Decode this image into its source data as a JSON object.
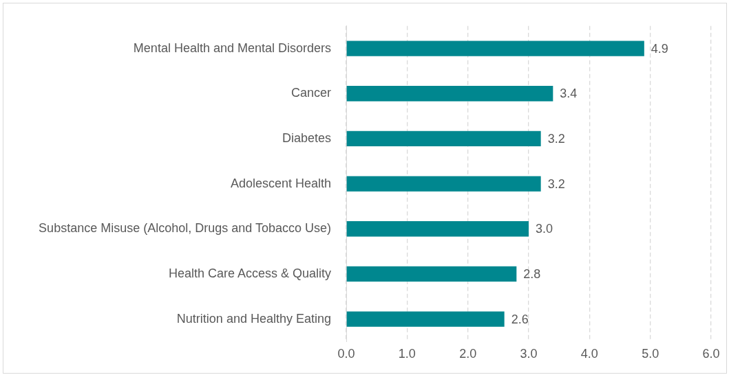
{
  "chart_data": {
    "type": "bar",
    "orientation": "horizontal",
    "categories": [
      "Mental Health and Mental Disorders",
      "Cancer",
      "Diabetes",
      "Adolescent Health",
      "Substance Misuse (Alcohol, Drugs and Tobacco Use)",
      "Health Care Access & Quality",
      "Nutrition and Healthy Eating"
    ],
    "values": [
      4.9,
      3.4,
      3.2,
      3.2,
      3.0,
      2.8,
      2.6
    ],
    "value_labels": [
      "4.9",
      "3.4",
      "3.2",
      "3.2",
      "3.0",
      "2.8",
      "2.6"
    ],
    "color": "#00878f",
    "xlim": [
      0,
      6
    ],
    "xticks": [
      {
        "value": 0,
        "label": "0.0"
      },
      {
        "value": 1,
        "label": "1.0"
      },
      {
        "value": 2,
        "label": "2.0"
      },
      {
        "value": 3,
        "label": "3.0"
      },
      {
        "value": 4,
        "label": "4.0"
      },
      {
        "value": 5,
        "label": "5.0"
      },
      {
        "value": 6,
        "label": "6.0"
      }
    ],
    "grid": "x",
    "legend": false
  }
}
